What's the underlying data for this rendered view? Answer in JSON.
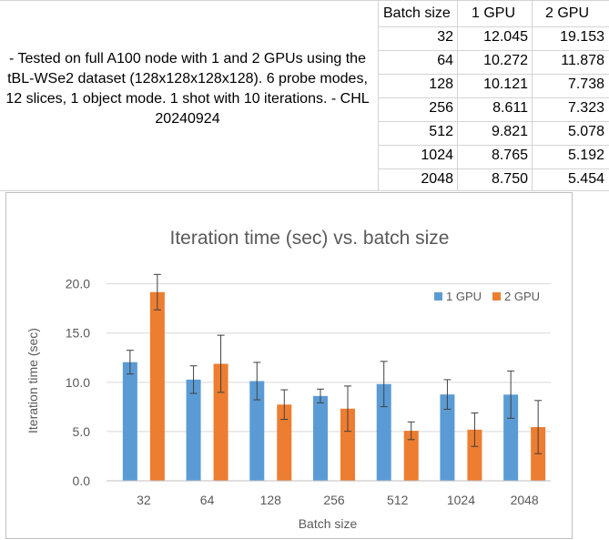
{
  "note": "- Tested on full A100 node with 1 and 2 GPUs using the tBL-WSe2 dataset (128x128x128x128). 6 probe modes, 12 slices, 1 object mode. 1 shot with 10 iterations. - CHL 20240924",
  "table": {
    "headers": [
      "Batch size",
      "1 GPU",
      "2 GPU"
    ],
    "rows": [
      [
        "32",
        "12.045",
        "19.153"
      ],
      [
        "64",
        "10.272",
        "11.878"
      ],
      [
        "128",
        "10.121",
        "7.738"
      ],
      [
        "256",
        "8.611",
        "7.323"
      ],
      [
        "512",
        "9.821",
        "5.078"
      ],
      [
        "1024",
        "8.765",
        "5.192"
      ],
      [
        "2048",
        "8.750",
        "5.454"
      ]
    ]
  },
  "chart_data": {
    "type": "bar",
    "title": "Iteration time (sec) vs. batch size",
    "xlabel": "Batch size",
    "ylabel": "Iteration time (sec)",
    "ylim": [
      0,
      22
    ],
    "yticks": [
      "0.0",
      "5.0",
      "10.0",
      "15.0",
      "20.0"
    ],
    "ytick_values": [
      0,
      5,
      10,
      15,
      20
    ],
    "grid": true,
    "legend_position": "top-right",
    "categories": [
      "32",
      "64",
      "128",
      "256",
      "512",
      "1024",
      "2048"
    ],
    "series": [
      {
        "name": "1 GPU",
        "color": "#5b9bd5",
        "values": [
          12.045,
          10.272,
          10.121,
          8.611,
          9.821,
          8.765,
          8.75
        ],
        "error": [
          1.2,
          1.4,
          1.9,
          0.7,
          2.3,
          1.5,
          2.4
        ]
      },
      {
        "name": "2 GPU",
        "color": "#ed7d31",
        "values": [
          19.153,
          11.878,
          7.738,
          7.323,
          5.078,
          5.192,
          5.454
        ],
        "error": [
          1.8,
          2.9,
          1.5,
          2.3,
          0.9,
          1.7,
          2.7
        ]
      }
    ]
  }
}
